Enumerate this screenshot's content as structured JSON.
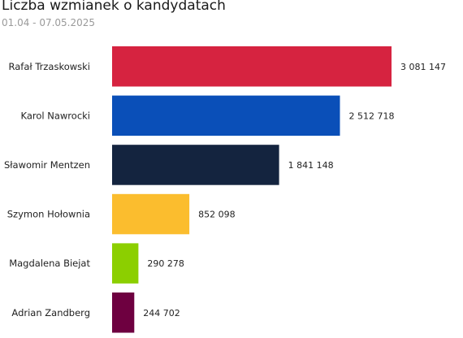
{
  "header": {
    "title": "Liczba wzmianek o kandydatach",
    "subtitle": "01.04 - 07.05.2025"
  },
  "chart_data": {
    "type": "bar",
    "orientation": "horizontal",
    "title": "Liczba wzmianek o kandydatach",
    "subtitle": "01.04 - 07.05.2025",
    "categories": [
      "Rafał Trzaskowski",
      "Karol Nawrocki",
      "Sławomir Mentzen",
      "Szymon Hołownia",
      "Magdalena Biejat",
      "Adrian Zandberg"
    ],
    "values": [
      3081147,
      2512718,
      1841148,
      852098,
      290278,
      244702
    ],
    "value_labels": [
      "3 081 147",
      "2 512 718",
      "1 841 148",
      "852 098",
      "290 278",
      "244 702"
    ],
    "colors": [
      "#d62340",
      "#0a4fb8",
      "#14243f",
      "#fbbd2e",
      "#8ccf00",
      "#6e0040"
    ],
    "xlabel": "",
    "ylabel": "",
    "xlim": [
      0,
      3081147
    ],
    "grid": false,
    "legend": "none"
  }
}
